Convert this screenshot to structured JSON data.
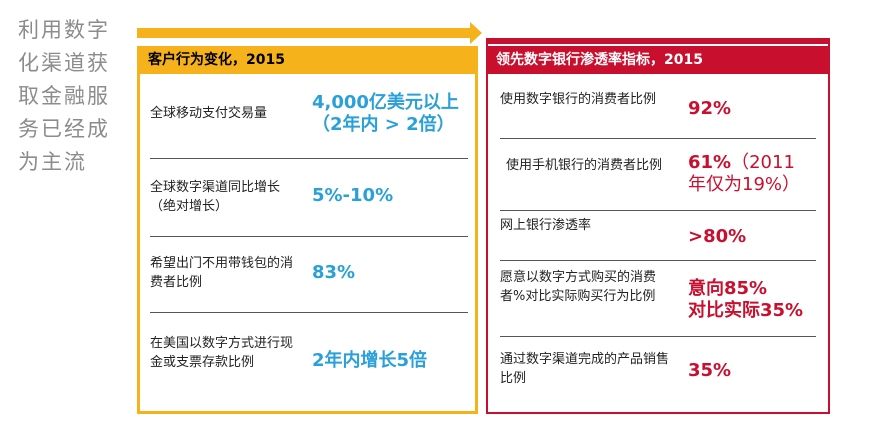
{
  "side_title": "利用数字化渠道获取金融服务已经成为主流",
  "left_panel": {
    "header": "客户行为变化，2015",
    "rows": [
      {
        "label": "全球移动支付交易量",
        "value_line1": "4,000亿美元以上",
        "value_line2": "（2年内 > 2倍）"
      },
      {
        "label": "全球数字渠道同比增长（绝对增长）",
        "value_line1": "5%-10%"
      },
      {
        "label": "希望出门不用带钱包的消费者比例",
        "value_line1": "83%"
      },
      {
        "label": "在美国以数字方式进行现金或支票存款比例",
        "value_line1": "2年内增长5倍"
      }
    ]
  },
  "right_panel": {
    "header": "领先数字银行渗透率指标，2015",
    "rows": [
      {
        "label": "使用数字银行的消费者比例",
        "value_line1": "92%"
      },
      {
        "label": "使用手机银行的消费者比例",
        "value_line1": "61%",
        "value_note1": "（2011",
        "value_line2": "年仅为19%）"
      },
      {
        "label": "网上银行渗透率",
        "value_line1": ">80%"
      },
      {
        "label": "愿意以数字方式购买的消费者%对比实际购买行为比例",
        "value_line1": "意向85%",
        "value_line2": "对比实际35%"
      },
      {
        "label": "通过数字渠道完成的产品销售比例",
        "value_line1": "35%"
      }
    ]
  },
  "colors": {
    "accent_yellow": "#f5b21a",
    "accent_red": "#c8102e",
    "value_blue": "#29a0d8"
  }
}
